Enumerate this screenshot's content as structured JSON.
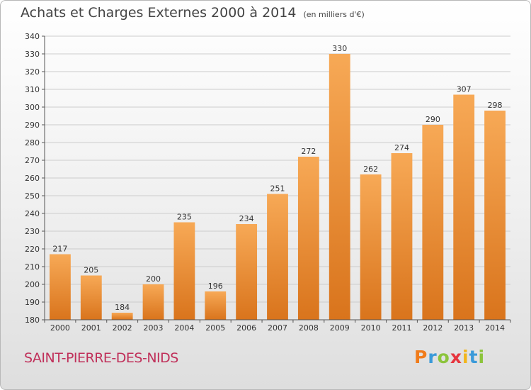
{
  "title": "Achats et Charges Externes 2000 à 2014",
  "unit": "(en milliers d'€)",
  "commune": "SAINT-PIERRE-DES-NIDS",
  "logo": {
    "letters": [
      "P",
      "r",
      "o",
      "x",
      "i",
      "t",
      "i"
    ],
    "colors": [
      "#f07c1b",
      "#3a9ad9",
      "#8cc43c",
      "#e6353e",
      "#f2b51a",
      "#3a9ad9",
      "#8cc43c"
    ]
  },
  "colors": {
    "bar_light": "#f7a956",
    "bar_dark": "#d9741c",
    "grid": "#cccccc",
    "axis": "#555555"
  },
  "chart_data": {
    "type": "bar",
    "title": "Achats et Charges Externes 2000 à 2014",
    "subtitle": "(en milliers d'€)",
    "categories": [
      "2000",
      "2001",
      "2002",
      "2003",
      "2004",
      "2005",
      "2006",
      "2007",
      "2008",
      "2009",
      "2010",
      "2011",
      "2012",
      "2013",
      "2014"
    ],
    "values": [
      217,
      205,
      184,
      200,
      235,
      196,
      234,
      251,
      272,
      330,
      262,
      274,
      290,
      307,
      298
    ],
    "ylim": [
      180,
      340
    ],
    "yticks": [
      180,
      190,
      200,
      210,
      220,
      230,
      240,
      250,
      260,
      270,
      280,
      290,
      300,
      310,
      320,
      330,
      340
    ],
    "grid": true,
    "xlabel": "",
    "ylabel": ""
  }
}
